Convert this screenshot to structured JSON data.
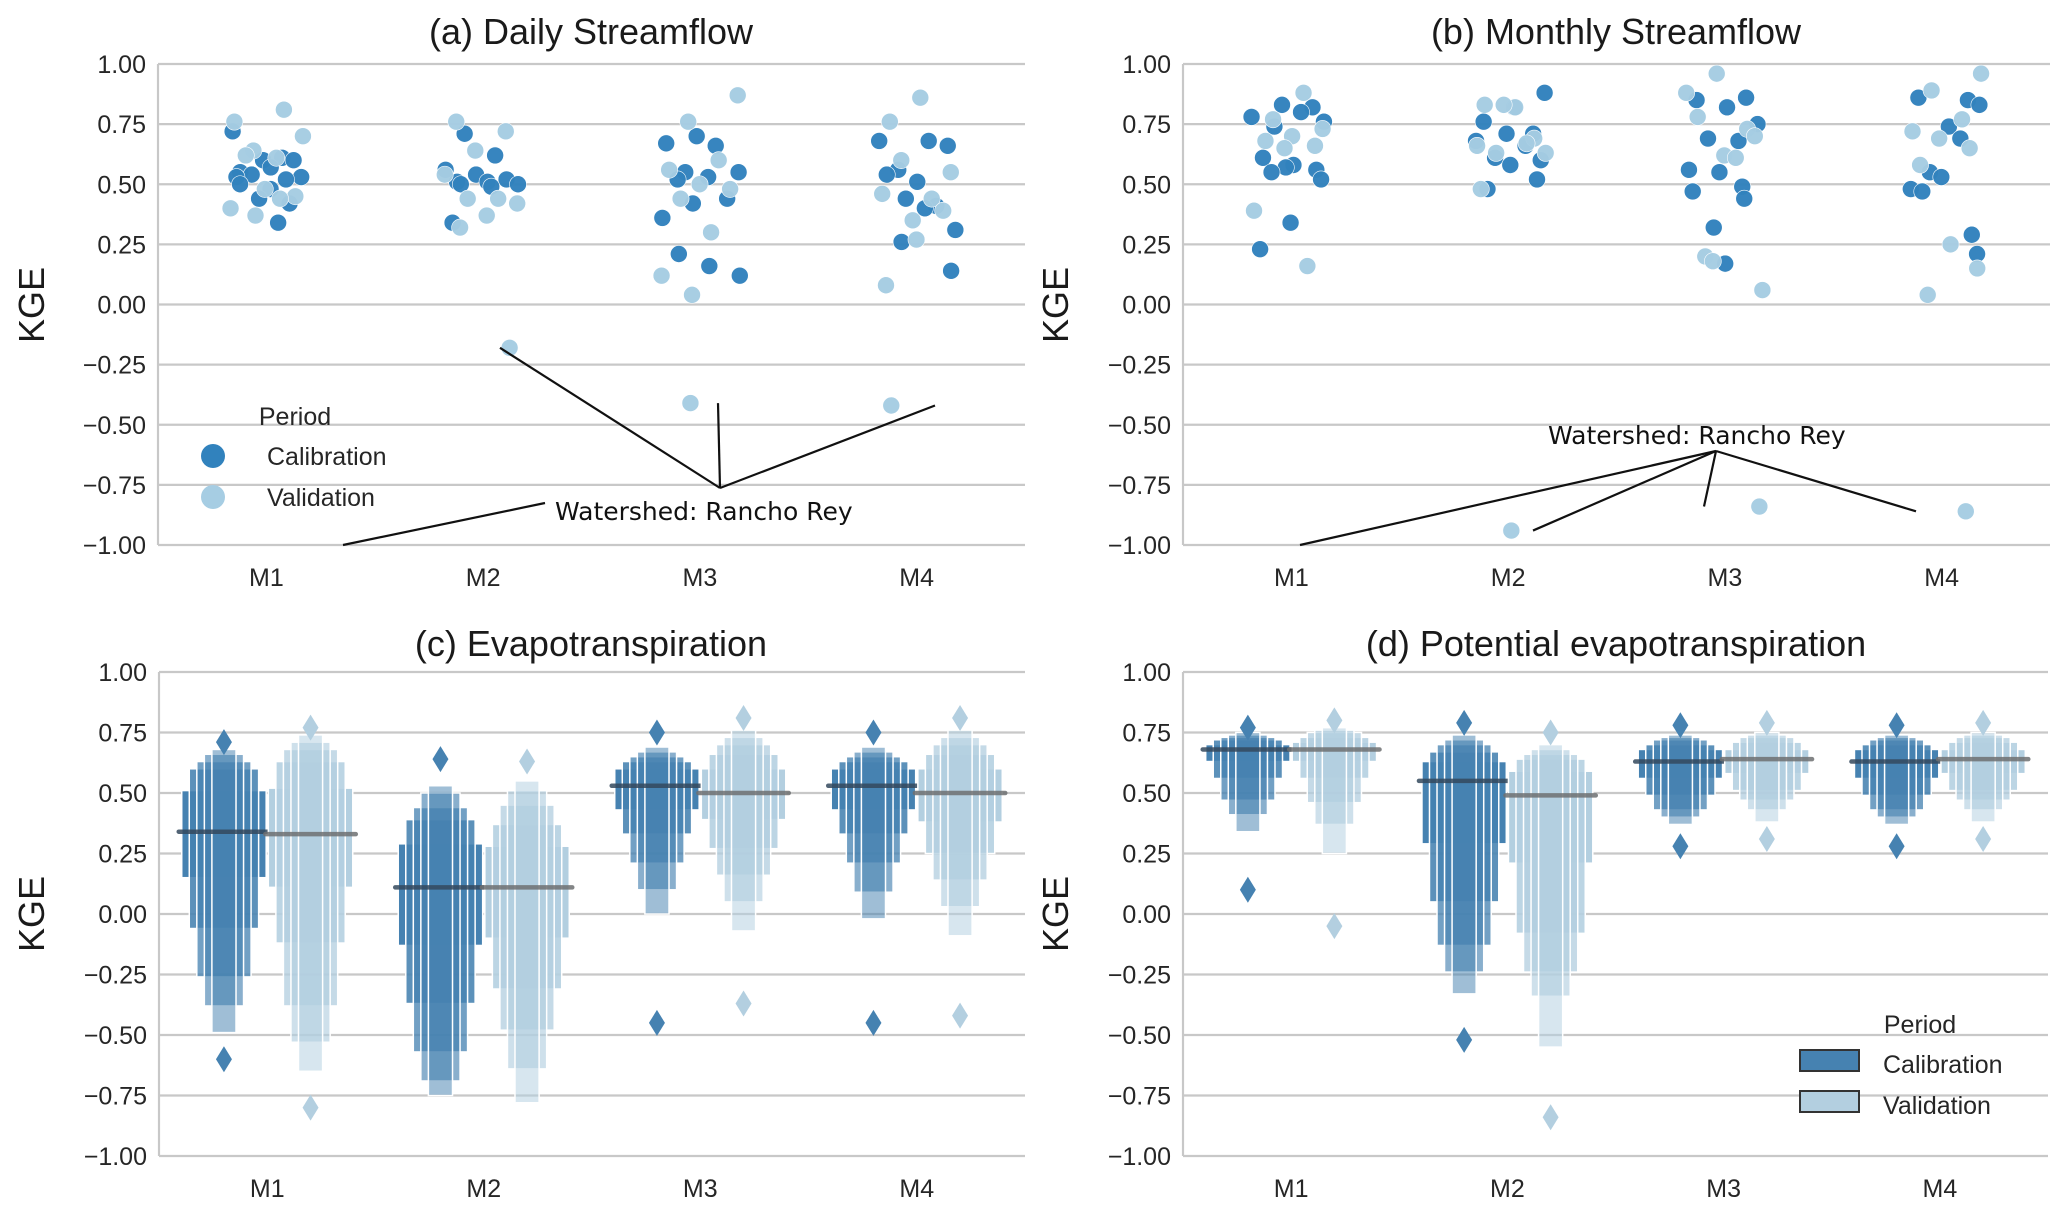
{
  "figure": {
    "ylabel": "KGE",
    "colors": {
      "calibration_point": "#3182bd",
      "validation_point": "#a6cde3",
      "calibration_box": "#4682b1",
      "validation_box": "#b3cfe0",
      "median_calibration": "#34495e",
      "median_validation": "#6e7072"
    }
  },
  "chart_data": [
    {
      "id": "a",
      "type": "scatter",
      "title": "(a) Daily Streamflow",
      "xlabel": "",
      "ylabel": "KGE",
      "categories": [
        "M1",
        "M2",
        "M3",
        "M4"
      ],
      "ylim": [
        -1.0,
        1.0
      ],
      "yticks": [
        "1.00",
        "0.75",
        "0.50",
        "0.25",
        "0.00",
        "−0.25",
        "−0.50",
        "−0.75",
        "−1.00"
      ],
      "grid": true,
      "legend": {
        "title": "Period",
        "entries": [
          "Calibration",
          "Validation"
        ],
        "placement": "lower-left"
      },
      "annotation": {
        "text": "Watershed: Rancho Rey",
        "targets": [
          [
            "M1",
            -1.0
          ],
          [
            "M2",
            -0.18
          ],
          [
            "M3",
            -0.41
          ],
          [
            "M4",
            -0.42
          ]
        ]
      },
      "series": [
        {
          "name": "Calibration",
          "values": {
            "M1": [
              0.72,
              0.61,
              0.6,
              0.6,
              0.57,
              0.55,
              0.54,
              0.53,
              0.53,
              0.52,
              0.5,
              0.48,
              0.44,
              0.42,
              0.34
            ],
            "M2": [
              0.71,
              0.62,
              0.56,
              0.54,
              0.52,
              0.51,
              0.51,
              0.5,
              0.5,
              0.49,
              0.34
            ],
            "M3": [
              0.7,
              0.67,
              0.66,
              0.55,
              0.55,
              0.53,
              0.52,
              0.44,
              0.42,
              0.36,
              0.21,
              0.16,
              0.12
            ],
            "M4": [
              0.68,
              0.68,
              0.66,
              0.56,
              0.54,
              0.51,
              0.44,
              0.41,
              0.4,
              0.31,
              0.26,
              0.14
            ]
          }
        },
        {
          "name": "Validation",
          "values": {
            "M1": [
              0.81,
              0.76,
              0.7,
              0.64,
              0.62,
              0.61,
              0.48,
              0.45,
              0.44,
              0.4,
              0.37
            ],
            "M2": [
              0.76,
              0.72,
              0.64,
              0.54,
              0.44,
              0.44,
              0.42,
              0.37,
              0.32,
              -0.18
            ],
            "M3": [
              0.87,
              0.76,
              0.6,
              0.56,
              0.5,
              0.48,
              0.44,
              0.3,
              0.12,
              0.04,
              -0.41
            ],
            "M4": [
              0.86,
              0.76,
              0.6,
              0.55,
              0.46,
              0.44,
              0.39,
              0.35,
              0.27,
              0.08,
              -0.42
            ]
          }
        }
      ]
    },
    {
      "id": "b",
      "type": "scatter",
      "title": "(b) Monthly Streamflow",
      "xlabel": "",
      "ylabel": "KGE",
      "categories": [
        "M1",
        "M2",
        "M3",
        "M4"
      ],
      "ylim": [
        -1.0,
        1.0
      ],
      "yticks": [
        "1.00",
        "0.75",
        "0.50",
        "0.25",
        "0.00",
        "−0.25",
        "−0.50",
        "−0.75",
        "−1.00"
      ],
      "grid": true,
      "annotation": {
        "text": "Watershed: Rancho Rey",
        "targets": [
          [
            "M1",
            -1.0
          ],
          [
            "M2",
            -0.94
          ],
          [
            "M3",
            -0.84
          ],
          [
            "M4",
            -0.86
          ]
        ]
      },
      "series": [
        {
          "name": "Calibration",
          "values": {
            "M1": [
              0.83,
              0.82,
              0.8,
              0.78,
              0.76,
              0.74,
              0.61,
              0.58,
              0.57,
              0.56,
              0.55,
              0.52,
              0.34,
              0.23
            ],
            "M2": [
              0.88,
              0.82,
              0.76,
              0.71,
              0.71,
              0.68,
              0.66,
              0.61,
              0.6,
              0.58,
              0.52,
              0.48
            ],
            "M3": [
              0.86,
              0.85,
              0.82,
              0.75,
              0.69,
              0.68,
              0.56,
              0.55,
              0.49,
              0.47,
              0.44,
              0.32,
              0.17
            ],
            "M4": [
              0.86,
              0.85,
              0.83,
              0.74,
              0.69,
              0.55,
              0.53,
              0.48,
              0.47,
              0.29,
              0.21
            ]
          }
        },
        {
          "name": "Validation",
          "values": {
            "M1": [
              0.88,
              0.77,
              0.73,
              0.7,
              0.68,
              0.66,
              0.65,
              0.39,
              0.16
            ],
            "M2": [
              0.83,
              0.82,
              0.83,
              0.69,
              0.67,
              0.66,
              0.63,
              0.63,
              0.48,
              -0.94
            ],
            "M3": [
              0.96,
              0.88,
              0.78,
              0.73,
              0.7,
              0.62,
              0.61,
              0.2,
              0.18,
              0.06,
              -0.84
            ],
            "M4": [
              0.96,
              0.89,
              0.77,
              0.72,
              0.69,
              0.65,
              0.58,
              0.25,
              0.15,
              0.04,
              -0.86
            ]
          }
        }
      ]
    },
    {
      "id": "c",
      "type": "boxen",
      "title": "(c) Evapotranspiration",
      "xlabel": "",
      "ylabel": "KGE",
      "categories": [
        "M1",
        "M2",
        "M3",
        "M4"
      ],
      "ylim": [
        -1.0,
        1.0
      ],
      "yticks": [
        "1.00",
        "0.75",
        "0.50",
        "0.25",
        "0.00",
        "−0.25",
        "−0.50",
        "−0.75",
        "−1.00"
      ],
      "grid": true,
      "series": [
        {
          "name": "Calibration",
          "groups": {
            "M1": {
              "median": 0.34,
              "levels": [
                [
                  0.15,
                  0.51
                ],
                [
                  -0.06,
                  0.6
                ],
                [
                  -0.26,
                  0.63
                ],
                [
                  -0.38,
                  0.66
                ],
                [
                  -0.49,
                  0.68
                ]
              ],
              "outliers": [
                0.71,
                -0.6
              ]
            },
            "M2": {
              "median": 0.11,
              "levels": [
                [
                  -0.13,
                  0.29
                ],
                [
                  -0.37,
                  0.39
                ],
                [
                  -0.57,
                  0.44
                ],
                [
                  -0.69,
                  0.5
                ],
                [
                  -0.75,
                  0.53
                ]
              ],
              "outliers": [
                0.64
              ]
            },
            "M3": {
              "median": 0.53,
              "levels": [
                [
                  0.43,
                  0.6
                ],
                [
                  0.33,
                  0.63
                ],
                [
                  0.21,
                  0.65
                ],
                [
                  0.1,
                  0.67
                ],
                [
                  0.0,
                  0.69
                ]
              ],
              "outliers": [
                0.75,
                -0.45
              ]
            },
            "M4": {
              "median": 0.53,
              "levels": [
                [
                  0.43,
                  0.6
                ],
                [
                  0.33,
                  0.63
                ],
                [
                  0.21,
                  0.65
                ],
                [
                  0.09,
                  0.67
                ],
                [
                  -0.02,
                  0.69
                ]
              ],
              "outliers": [
                0.75,
                -0.45
              ]
            }
          }
        },
        {
          "name": "Validation",
          "groups": {
            "M1": {
              "median": 0.33,
              "levels": [
                [
                  0.11,
                  0.52
                ],
                [
                  -0.12,
                  0.63
                ],
                [
                  -0.38,
                  0.68
                ],
                [
                  -0.53,
                  0.71
                ],
                [
                  -0.65,
                  0.74
                ]
              ],
              "outliers": [
                0.77,
                -0.8
              ]
            },
            "M2": {
              "median": 0.11,
              "levels": [
                [
                  -0.1,
                  0.28
                ],
                [
                  -0.31,
                  0.37
                ],
                [
                  -0.48,
                  0.45
                ],
                [
                  -0.64,
                  0.51
                ],
                [
                  -0.78,
                  0.55
                ]
              ],
              "outliers": [
                0.63
              ]
            },
            "M3": {
              "median": 0.5,
              "levels": [
                [
                  0.39,
                  0.6
                ],
                [
                  0.27,
                  0.66
                ],
                [
                  0.16,
                  0.7
                ],
                [
                  0.05,
                  0.73
                ],
                [
                  -0.07,
                  0.76
                ]
              ],
              "outliers": [
                0.81,
                -0.37
              ]
            },
            "M4": {
              "median": 0.5,
              "levels": [
                [
                  0.38,
                  0.6
                ],
                [
                  0.25,
                  0.66
                ],
                [
                  0.14,
                  0.7
                ],
                [
                  0.03,
                  0.73
                ],
                [
                  -0.09,
                  0.76
                ]
              ],
              "outliers": [
                0.81,
                -0.42
              ]
            }
          }
        }
      ]
    },
    {
      "id": "d",
      "type": "boxen",
      "title": "(d) Potential evapotranspiration",
      "xlabel": "",
      "ylabel": "KGE",
      "categories": [
        "M1",
        "M2",
        "M3",
        "M4"
      ],
      "ylim": [
        -1.0,
        1.0
      ],
      "yticks": [
        "1.00",
        "0.75",
        "0.50",
        "0.25",
        "0.00",
        "−0.25",
        "−0.50",
        "−0.75",
        "−1.00"
      ],
      "grid": true,
      "legend": {
        "title": "Period",
        "entries": [
          "Calibration",
          "Validation"
        ],
        "placement": "lower-right"
      },
      "series": [
        {
          "name": "Calibration",
          "groups": {
            "M1": {
              "median": 0.68,
              "levels": [
                [
                  0.63,
                  0.7
                ],
                [
                  0.56,
                  0.72
                ],
                [
                  0.47,
                  0.73
                ],
                [
                  0.41,
                  0.74
                ],
                [
                  0.34,
                  0.75
                ]
              ],
              "outliers": [
                0.77,
                0.1
              ]
            },
            "M2": {
              "median": 0.55,
              "levels": [
                [
                  0.29,
                  0.63
                ],
                [
                  0.05,
                  0.67
                ],
                [
                  -0.13,
                  0.7
                ],
                [
                  -0.24,
                  0.72
                ],
                [
                  -0.33,
                  0.74
                ]
              ],
              "outliers": [
                0.79,
                -0.52
              ]
            },
            "M3": {
              "median": 0.63,
              "levels": [
                [
                  0.56,
                  0.68
                ],
                [
                  0.49,
                  0.7
                ],
                [
                  0.43,
                  0.72
                ],
                [
                  0.4,
                  0.73
                ],
                [
                  0.37,
                  0.74
                ]
              ],
              "outliers": [
                0.78,
                0.28
              ]
            },
            "M4": {
              "median": 0.63,
              "levels": [
                [
                  0.56,
                  0.68
                ],
                [
                  0.49,
                  0.7
                ],
                [
                  0.43,
                  0.72
                ],
                [
                  0.4,
                  0.73
                ],
                [
                  0.37,
                  0.74
                ]
              ],
              "outliers": [
                0.78,
                0.28
              ]
            }
          }
        },
        {
          "name": "Validation",
          "groups": {
            "M1": {
              "median": 0.68,
              "levels": [
                [
                  0.63,
                  0.71
                ],
                [
                  0.56,
                  0.73
                ],
                [
                  0.46,
                  0.75
                ],
                [
                  0.37,
                  0.76
                ],
                [
                  0.25,
                  0.77
                ]
              ],
              "outliers": [
                0.8,
                -0.05
              ]
            },
            "M2": {
              "median": 0.49,
              "levels": [
                [
                  0.21,
                  0.59
                ],
                [
                  -0.08,
                  0.64
                ],
                [
                  -0.24,
                  0.66
                ],
                [
                  -0.34,
                  0.68
                ],
                [
                  -0.55,
                  0.7
                ]
              ],
              "outliers": [
                0.75,
                -0.84
              ]
            },
            "M3": {
              "median": 0.64,
              "levels": [
                [
                  0.58,
                  0.68
                ],
                [
                  0.51,
                  0.71
                ],
                [
                  0.47,
                  0.73
                ],
                [
                  0.43,
                  0.74
                ],
                [
                  0.38,
                  0.75
                ]
              ],
              "outliers": [
                0.79,
                0.31
              ]
            },
            "M4": {
              "median": 0.64,
              "levels": [
                [
                  0.58,
                  0.68
                ],
                [
                  0.51,
                  0.71
                ],
                [
                  0.47,
                  0.73
                ],
                [
                  0.43,
                  0.74
                ],
                [
                  0.38,
                  0.75
                ]
              ],
              "outliers": [
                0.79,
                0.31
              ]
            }
          }
        }
      ]
    }
  ]
}
